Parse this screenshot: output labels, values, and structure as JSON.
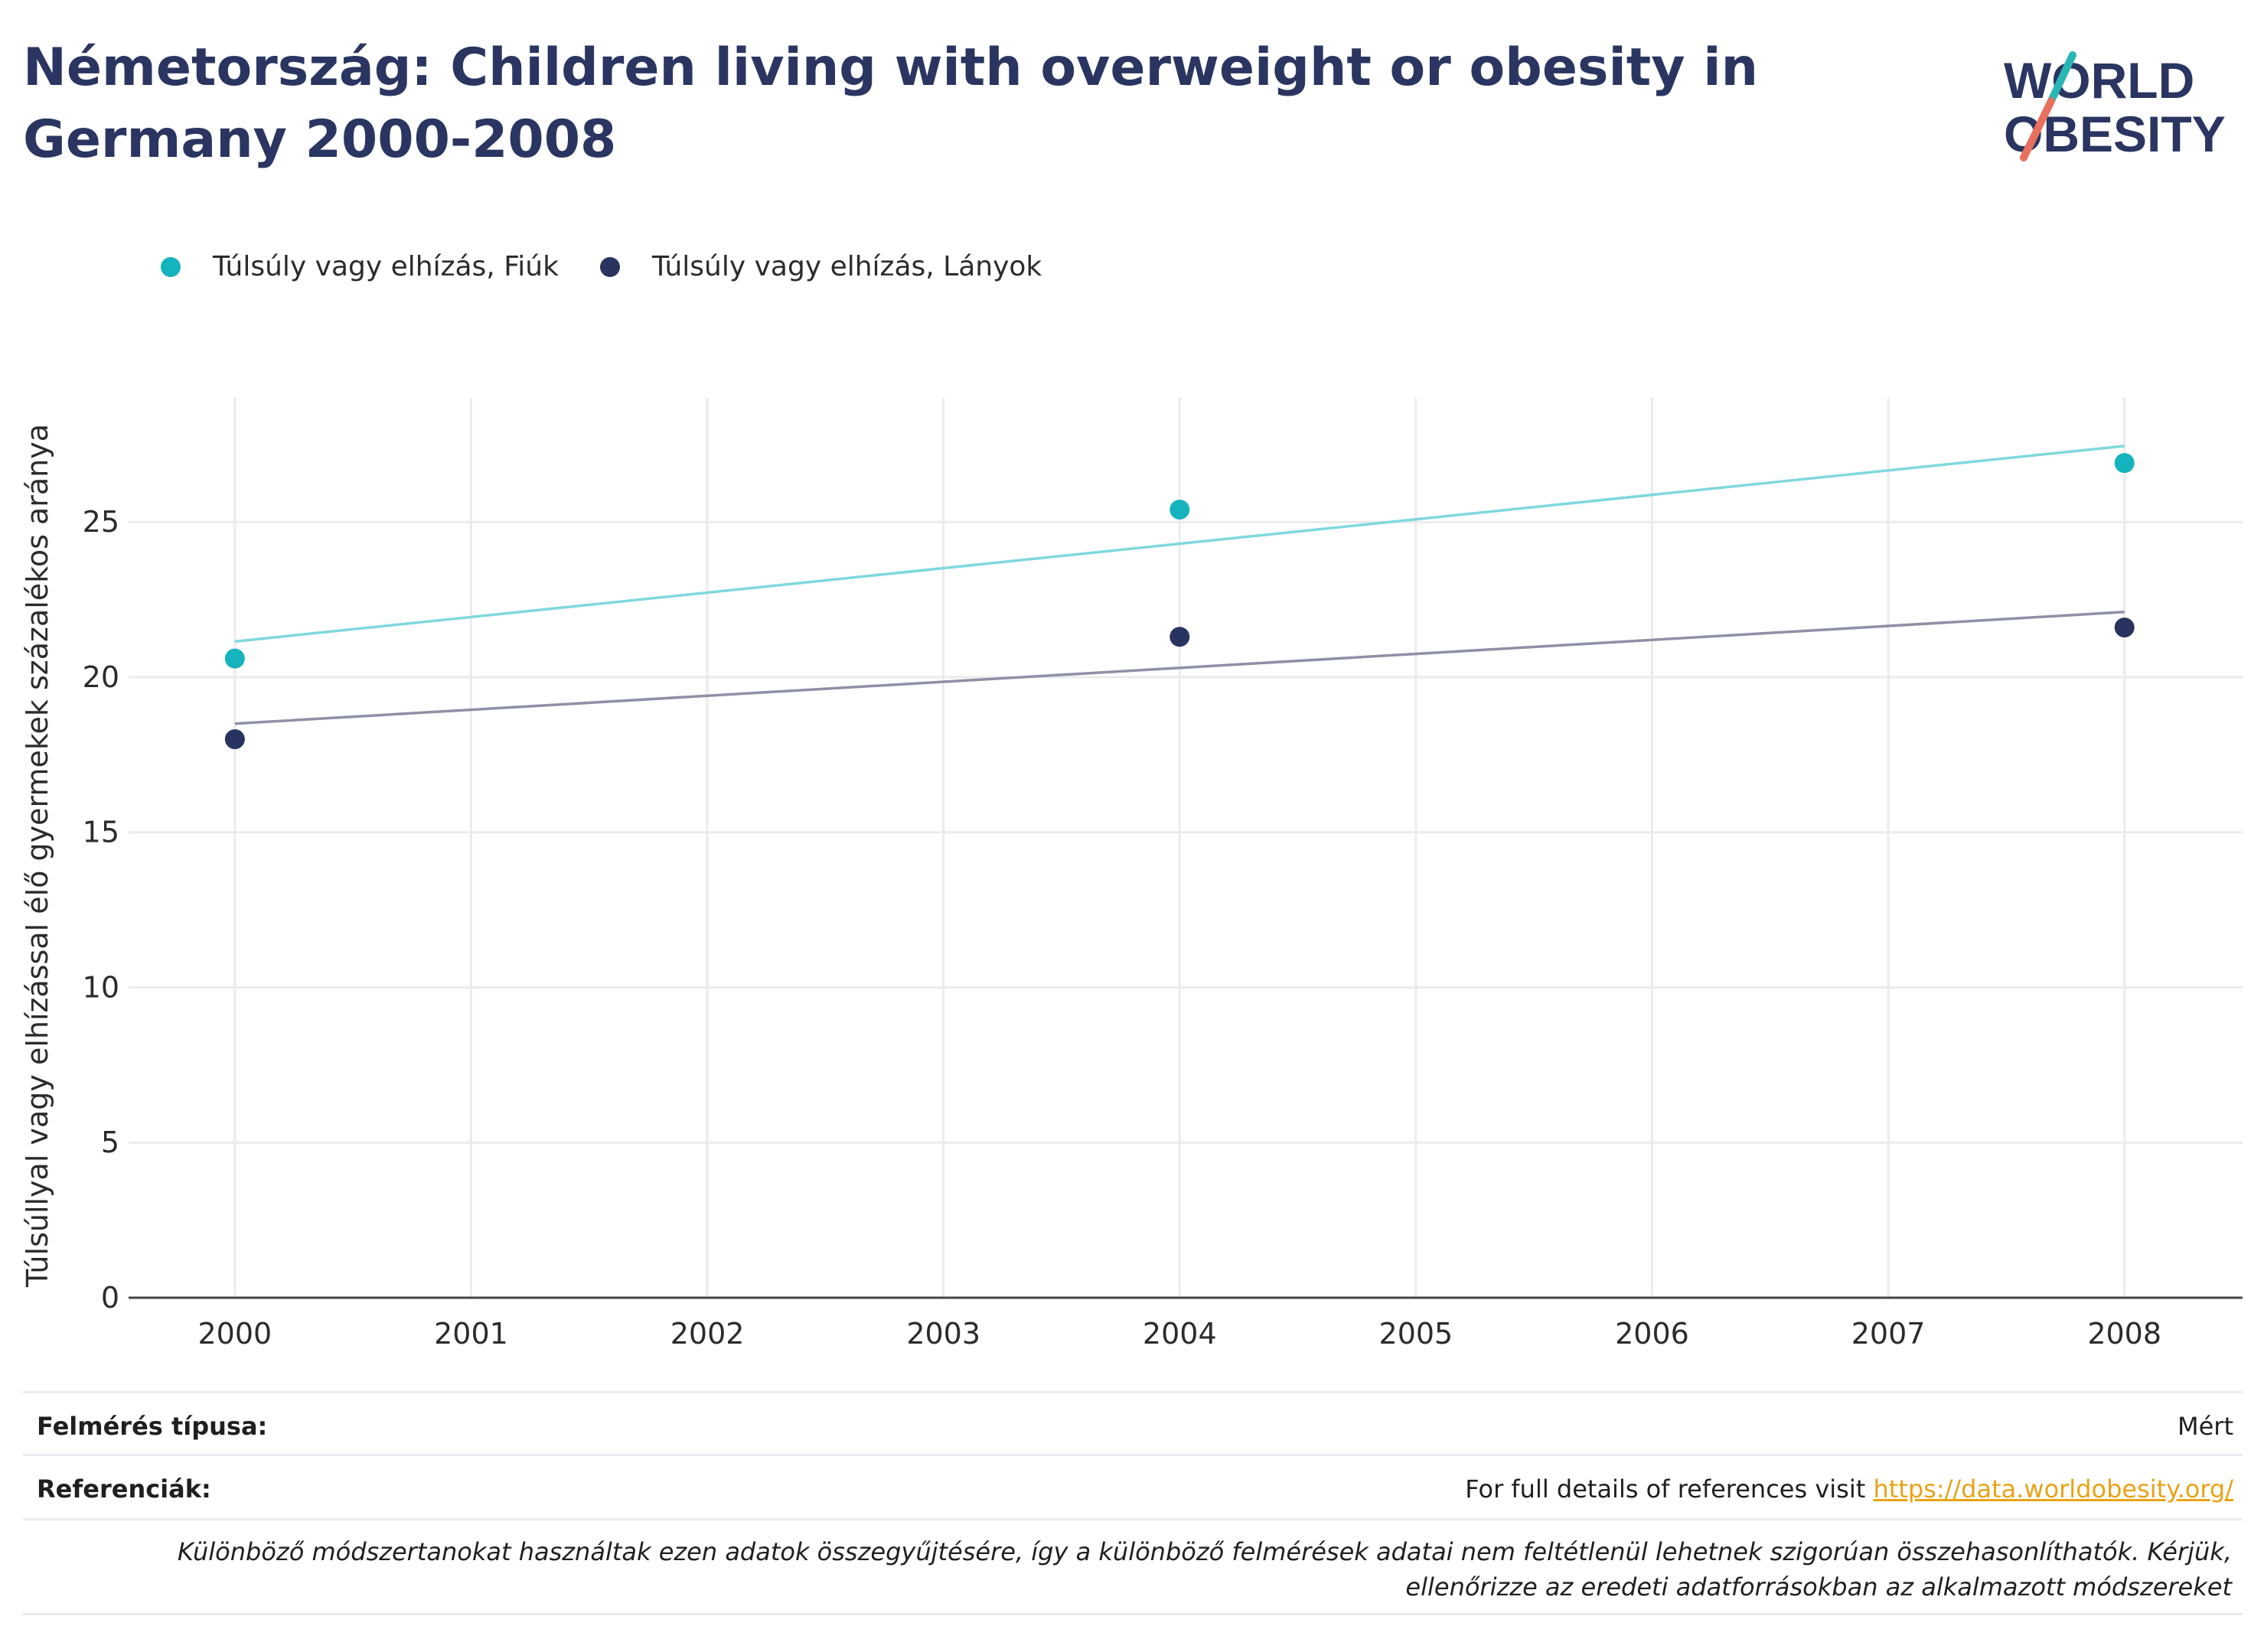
{
  "title": "Németország: Children living with overweight or obesity in Germany 2000-2008",
  "logo": {
    "line1": "WORLD",
    "line2": "OBESITY",
    "accent_teal": "#2bb6b6",
    "accent_coral": "#e8705e",
    "text_color": "#2a3561"
  },
  "colors": {
    "boys": "#14b3bd",
    "girls": "#283360",
    "boys_trend": "#7fd8dd",
    "girls_trend": "#8d91a6",
    "grid": "#ebebeb",
    "axis": "#444444"
  },
  "chart_data": {
    "type": "scatter",
    "x": [
      2000,
      2004,
      2008
    ],
    "xticks": [
      2000,
      2001,
      2002,
      2003,
      2004,
      2005,
      2006,
      2007,
      2008
    ],
    "xlim": [
      1999.55,
      2008.5
    ],
    "ylim": [
      0,
      29
    ],
    "yticks": [
      0,
      5,
      10,
      15,
      20,
      25
    ],
    "ylabel": "Túlsúllyal vagy elhízással élő gyermekek százalékos aránya",
    "xlabel": "",
    "grid": true,
    "legend_position": "top-left",
    "series": [
      {
        "name": "Túlsúly vagy elhízás, Fiúk",
        "values": [
          20.6,
          25.4,
          26.9
        ],
        "trend": [
          21.15,
          27.45
        ],
        "color": "#14b3bd"
      },
      {
        "name": "Túlsúly vagy elhízás, Lányok",
        "values": [
          18.0,
          21.3,
          21.6
        ],
        "trend": [
          18.5,
          22.1
        ],
        "color": "#283360"
      }
    ]
  },
  "footer": {
    "survey_label": "Felmérés típusa:",
    "survey_value": "Mért",
    "references_label": "Referenciák:",
    "references_text": "For full details of references visit ",
    "references_link": "https://data.worldobesity.org/",
    "note": "Különböző módszertanokat használtak ezen adatok összegyűjtésére, így a különböző felmérések adatai nem feltétlenül lehetnek szigorúan összehasonlíthatók. Kérjük, ellenőrizze az eredeti adatforrásokban az alkalmazott módszereket"
  }
}
